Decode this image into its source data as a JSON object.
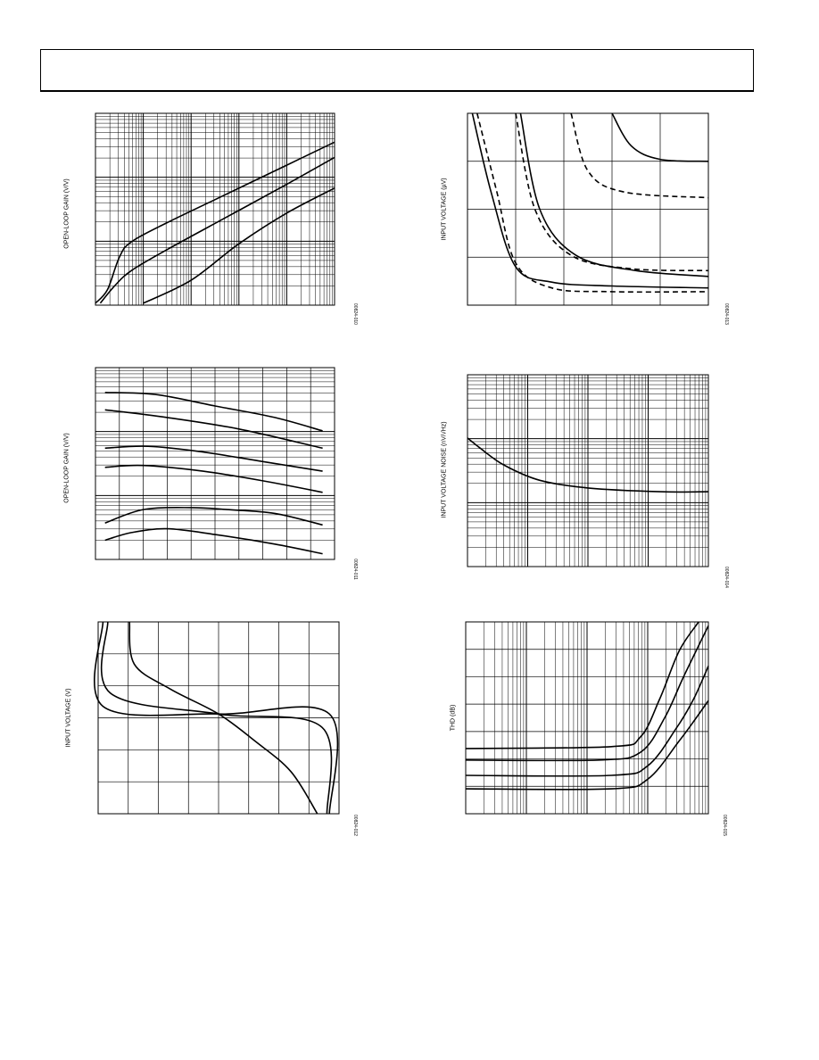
{
  "header": {
    "title": ""
  },
  "chart_data": [
    {
      "id": "c1",
      "type": "line",
      "ylabel": "OPEN-LOOP GAIN (V/V)",
      "fig_id": "00824-010",
      "x_scale": "log",
      "y_scale": "log",
      "series": [
        {
          "style": "solid",
          "points": [
            [
              0,
              0.01
            ],
            [
              0.05,
              0.08
            ],
            [
              0.1,
              0.25
            ],
            [
              0.15,
              0.33
            ],
            [
              0.3,
              0.43
            ],
            [
              0.55,
              0.58
            ],
            [
              0.8,
              0.73
            ],
            [
              1,
              0.85
            ]
          ]
        },
        {
          "style": "solid",
          "points": [
            [
              0.02,
              0.01
            ],
            [
              0.08,
              0.1
            ],
            [
              0.15,
              0.18
            ],
            [
              0.3,
              0.29
            ],
            [
              0.55,
              0.46
            ],
            [
              0.8,
              0.63
            ],
            [
              1,
              0.77
            ]
          ]
        },
        {
          "style": "solid",
          "points": [
            [
              0.2,
              0.01
            ],
            [
              0.4,
              0.13
            ],
            [
              0.6,
              0.32
            ],
            [
              0.8,
              0.48
            ],
            [
              1,
              0.61
            ]
          ]
        }
      ]
    },
    {
      "id": "c2",
      "type": "line",
      "ylabel": "OPEN-LOOP GAIN (V/V)",
      "fig_id": "00824-011",
      "x_scale": "linear",
      "y_scale": "log",
      "series": [
        {
          "style": "solid",
          "points": [
            [
              0.04,
              0.87
            ],
            [
              0.25,
              0.86
            ],
            [
              0.5,
              0.8
            ],
            [
              0.75,
              0.74
            ],
            [
              0.95,
              0.67
            ]
          ]
        },
        {
          "style": "solid",
          "points": [
            [
              0.04,
              0.78
            ],
            [
              0.3,
              0.74
            ],
            [
              0.6,
              0.68
            ],
            [
              0.95,
              0.58
            ]
          ]
        },
        {
          "style": "solid",
          "points": [
            [
              0.04,
              0.58
            ],
            [
              0.22,
              0.59
            ],
            [
              0.45,
              0.56
            ],
            [
              0.7,
              0.51
            ],
            [
              0.95,
              0.46
            ]
          ]
        },
        {
          "style": "solid",
          "points": [
            [
              0.04,
              0.48
            ],
            [
              0.2,
              0.49
            ],
            [
              0.45,
              0.46
            ],
            [
              0.7,
              0.41
            ],
            [
              0.95,
              0.35
            ]
          ]
        },
        {
          "style": "solid",
          "points": [
            [
              0.04,
              0.19
            ],
            [
              0.2,
              0.26
            ],
            [
              0.4,
              0.27
            ],
            [
              0.55,
              0.26
            ],
            [
              0.75,
              0.24
            ],
            [
              0.95,
              0.18
            ]
          ]
        },
        {
          "style": "solid",
          "points": [
            [
              0.04,
              0.1
            ],
            [
              0.15,
              0.14
            ],
            [
              0.3,
              0.16
            ],
            [
              0.5,
              0.13
            ],
            [
              0.75,
              0.08
            ],
            [
              0.95,
              0.03
            ]
          ]
        }
      ]
    },
    {
      "id": "c3",
      "type": "line",
      "ylabel": "INPUT VOLTAGE (V)",
      "fig_id": "00824-012",
      "x_scale": "linear",
      "y_scale": "linear",
      "series": [
        {
          "style": "solid",
          "points": [
            [
              0.02,
              1
            ],
            [
              0.02,
              0.56
            ],
            [
              0.5,
              0.52
            ],
            [
              0.96,
              0.52
            ],
            [
              0.96,
              0
            ]
          ]
        },
        {
          "style": "solid",
          "points": [
            [
              0.04,
              1
            ],
            [
              0.05,
              0.63
            ],
            [
              0.5,
              0.52
            ],
            [
              0.93,
              0.45
            ],
            [
              0.95,
              0
            ]
          ]
        },
        {
          "style": "solid",
          "points": [
            [
              0.13,
              1
            ],
            [
              0.15,
              0.78
            ],
            [
              0.3,
              0.65
            ],
            [
              0.5,
              0.52
            ],
            [
              0.65,
              0.38
            ],
            [
              0.8,
              0.22
            ],
            [
              0.91,
              0
            ]
          ]
        }
      ]
    },
    {
      "id": "c4",
      "type": "line",
      "ylabel": "INPUT VOLTAGE (µV)",
      "fig_id": "00824-013",
      "x_scale": "linear",
      "y_scale": "linear",
      "series": [
        {
          "style": "solid",
          "points": [
            [
              0.02,
              1
            ],
            [
              0.1,
              0.58
            ],
            [
              0.2,
              0.2
            ],
            [
              0.35,
              0.12
            ],
            [
              0.6,
              0.1
            ],
            [
              1,
              0.09
            ]
          ]
        },
        {
          "style": "dashed",
          "points": [
            [
              0.04,
              1
            ],
            [
              0.12,
              0.6
            ],
            [
              0.2,
              0.22
            ],
            [
              0.35,
              0.09
            ],
            [
              0.6,
              0.07
            ],
            [
              1,
              0.07
            ]
          ]
        },
        {
          "style": "solid",
          "points": [
            [
              0.22,
              1
            ],
            [
              0.3,
              0.5
            ],
            [
              0.45,
              0.26
            ],
            [
              0.7,
              0.18
            ],
            [
              1,
              0.15
            ]
          ]
        },
        {
          "style": "dashed",
          "points": [
            [
              0.2,
              1
            ],
            [
              0.28,
              0.5
            ],
            [
              0.43,
              0.26
            ],
            [
              0.68,
              0.19
            ],
            [
              1,
              0.18
            ]
          ]
        },
        {
          "style": "dashed",
          "points": [
            [
              0.43,
              1
            ],
            [
              0.5,
              0.7
            ],
            [
              0.65,
              0.59
            ],
            [
              1,
              0.56
            ]
          ]
        },
        {
          "style": "solid",
          "points": [
            [
              0.6,
              1
            ],
            [
              0.68,
              0.83
            ],
            [
              0.8,
              0.76
            ],
            [
              1,
              0.75
            ]
          ]
        }
      ]
    },
    {
      "id": "c5",
      "type": "line",
      "ylabel": "INPUT VOLTAGE NOISE (nV/√Hz)",
      "fig_id": "00824-014",
      "x_scale": "log",
      "y_scale": "log",
      "series": [
        {
          "style": "solid",
          "points": [
            [
              0,
              0.67
            ],
            [
              0.05,
              0.62
            ],
            [
              0.15,
              0.53
            ],
            [
              0.3,
              0.45
            ],
            [
              0.5,
              0.41
            ],
            [
              0.8,
              0.39
            ],
            [
              1,
              0.39
            ]
          ]
        }
      ]
    },
    {
      "id": "c6",
      "type": "line",
      "ylabel": "THD (dB)",
      "fig_id": "00824-015",
      "x_scale": "log",
      "y_scale": "linear",
      "series": [
        {
          "style": "solid",
          "points": [
            [
              0,
              0.34
            ],
            [
              0.6,
              0.35
            ],
            [
              0.72,
              0.4
            ],
            [
              0.8,
              0.6
            ],
            [
              0.88,
              0.85
            ],
            [
              0.96,
              1
            ]
          ]
        },
        {
          "style": "solid",
          "points": [
            [
              0,
              0.28
            ],
            [
              0.55,
              0.28
            ],
            [
              0.72,
              0.32
            ],
            [
              0.82,
              0.5
            ],
            [
              0.9,
              0.72
            ],
            [
              1,
              0.98
            ]
          ]
        },
        {
          "style": "solid",
          "points": [
            [
              0,
              0.2
            ],
            [
              0.6,
              0.2
            ],
            [
              0.75,
              0.25
            ],
            [
              0.87,
              0.45
            ],
            [
              0.94,
              0.6
            ],
            [
              1,
              0.77
            ]
          ]
        },
        {
          "style": "solid",
          "points": [
            [
              0,
              0.13
            ],
            [
              0.6,
              0.13
            ],
            [
              0.75,
              0.18
            ],
            [
              0.88,
              0.38
            ],
            [
              0.95,
              0.5
            ],
            [
              1,
              0.59
            ]
          ]
        }
      ]
    }
  ]
}
